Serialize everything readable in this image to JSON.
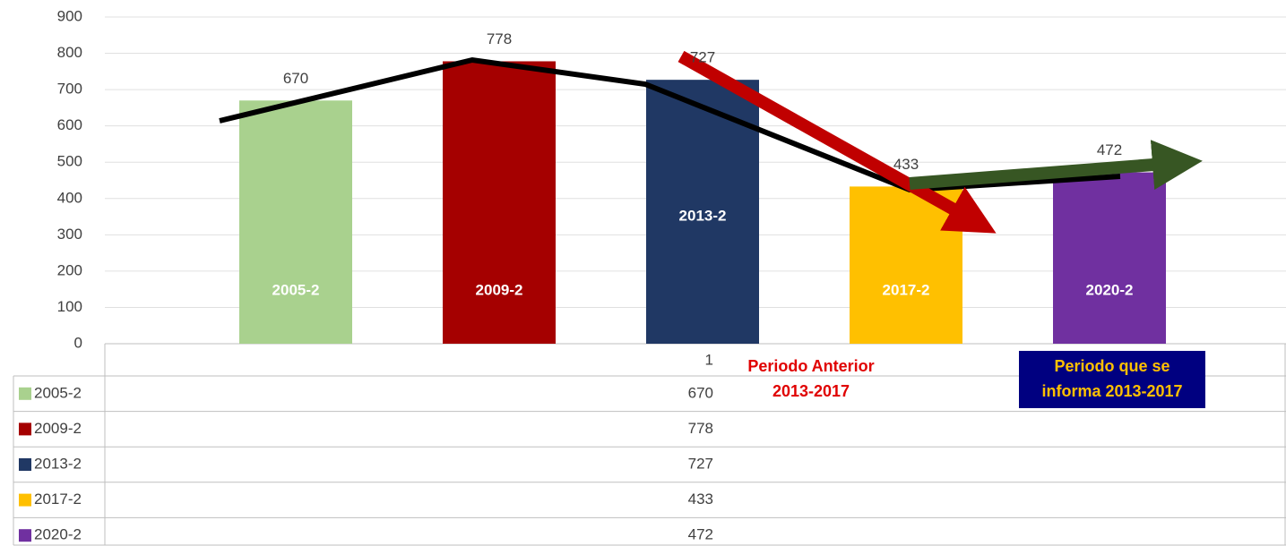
{
  "chart_data": {
    "type": "bar",
    "categories": [
      "1"
    ],
    "series": [
      {
        "name": "2005-2",
        "color": "#a9d18e",
        "values": [
          670
        ]
      },
      {
        "name": "2009-2",
        "color": "#a50000",
        "values": [
          778
        ]
      },
      {
        "name": "2013-2",
        "color": "#203864",
        "values": [
          727
        ]
      },
      {
        "name": "2017-2",
        "color": "#ffc000",
        "values": [
          433
        ]
      },
      {
        "name": "2020-2",
        "color": "#7030a0",
        "values": [
          472
        ]
      }
    ],
    "ylim": [
      0,
      900
    ],
    "yticks": [
      0,
      100,
      200,
      300,
      400,
      500,
      600,
      700,
      800,
      900
    ],
    "grid": true,
    "annotations": [
      {
        "lines": [
          "Periodo  Anterior",
          "2013-2017"
        ],
        "color": "#e00000"
      },
      {
        "lines": [
          "Periodo  que se",
          "informa 2013-2017"
        ],
        "color": "#ffc000",
        "background": "#000080"
      }
    ]
  }
}
